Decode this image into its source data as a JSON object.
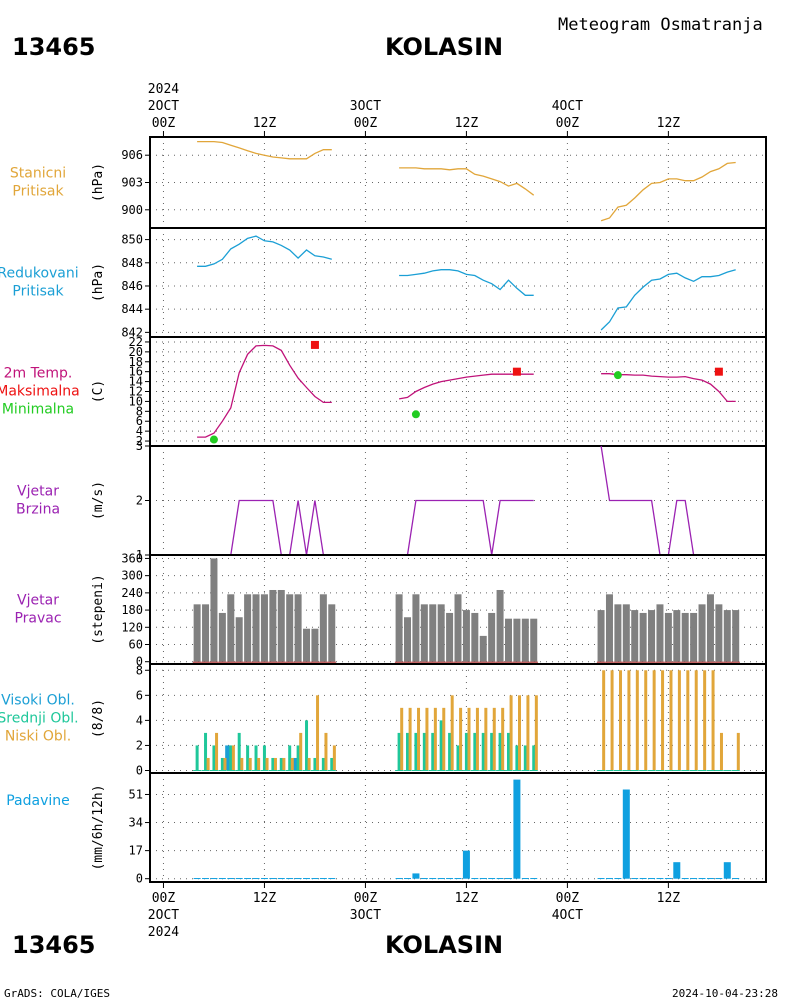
{
  "header": {
    "station_id": "13465",
    "station_name": "KOLASIN",
    "product_title": "Meteogram Osmatranja",
    "footer_left": "GrADS: COLA/IGES",
    "footer_right": "2024-10-04-23:28"
  },
  "time_axis": {
    "year_label": "2024",
    "top_day_labels": [
      "2OCT",
      "3OCT",
      "4OCT"
    ],
    "bottom_day_labels": [
      "2OCT",
      "3OCT",
      "4OCT"
    ],
    "hour_labels": [
      "00Z",
      "12Z",
      "00Z",
      "12Z",
      "00Z",
      "12Z"
    ],
    "hour_ticks_h": [
      0,
      12,
      24,
      36,
      48,
      60
    ],
    "range_h": [
      -1.6,
      71.6
    ]
  },
  "colors": {
    "pressure": "#e1a63a",
    "reduced_pressure": "#1b9fd5",
    "temperature": "#c0137a",
    "tmax": "#ee1111",
    "tmin": "#22cc22",
    "wind": "#9b22b2",
    "wind_dir": "#808080",
    "cloud_high": "#1b9fd5",
    "cloud_mid": "#1fc79a",
    "cloud_low": "#e1a63a",
    "precip": "#0fa0e0",
    "frame": "#000000",
    "grid": "#666666"
  },
  "chart_data": [
    {
      "type": "line",
      "panel": "station_pressure",
      "title": "Stanicni\nPritisak",
      "ylabel": "(hPa)",
      "ylim": [
        898,
        908
      ],
      "yticks": [
        900,
        903,
        906
      ],
      "color_key": "pressure",
      "segments": [
        {
          "x": [
            4,
            5,
            6,
            7,
            8,
            9,
            10,
            11,
            12,
            13,
            14,
            15,
            16,
            17,
            18,
            19,
            20
          ],
          "y": [
            907.5,
            907.5,
            907.5,
            907.4,
            907.1,
            906.8,
            906.5,
            906.2,
            906.0,
            905.8,
            905.7,
            905.6,
            905.6,
            905.6,
            906.2,
            906.6,
            906.6
          ]
        },
        {
          "x": [
            28,
            29,
            30,
            31,
            32,
            33,
            34,
            35,
            36,
            37,
            38,
            39,
            40,
            41,
            42,
            43,
            44
          ],
          "y": [
            904.6,
            904.6,
            904.6,
            904.5,
            904.5,
            904.5,
            904.4,
            904.5,
            904.5,
            903.9,
            903.7,
            903.4,
            903.1,
            902.6,
            902.9,
            902.3,
            901.6
          ]
        },
        {
          "x": [
            52,
            53,
            54,
            55,
            56,
            57,
            58,
            59,
            60,
            61,
            62,
            63,
            64,
            65,
            66,
            67,
            68
          ],
          "y": [
            898.8,
            899.1,
            900.3,
            900.5,
            901.3,
            902.2,
            902.9,
            903.0,
            903.4,
            903.4,
            903.2,
            903.2,
            903.6,
            904.2,
            904.5,
            905.1,
            905.2
          ]
        }
      ]
    },
    {
      "type": "line",
      "panel": "reduced_pressure",
      "title": "Redukovani\nPritisak",
      "ylabel": "(hPa)",
      "ylim": [
        841.6,
        851.0
      ],
      "yticks": [
        842,
        844,
        846,
        848,
        850
      ],
      "color_key": "reduced_pressure",
      "segments": [
        {
          "x": [
            4,
            5,
            6,
            7,
            8,
            9,
            10,
            11,
            12,
            13,
            14,
            15,
            16,
            17,
            18,
            19,
            20
          ],
          "y": [
            847.7,
            847.7,
            847.9,
            848.3,
            849.2,
            849.6,
            850.1,
            850.3,
            849.9,
            849.8,
            849.5,
            849.1,
            848.4,
            849.1,
            848.6,
            848.5,
            848.3
          ]
        },
        {
          "x": [
            28,
            29,
            30,
            31,
            32,
            33,
            34,
            35,
            36,
            37,
            38,
            39,
            40,
            41,
            42,
            43,
            44
          ],
          "y": [
            846.9,
            846.9,
            847.0,
            847.1,
            847.3,
            847.4,
            847.4,
            847.3,
            847.0,
            846.9,
            846.5,
            846.2,
            845.7,
            846.5,
            845.8,
            845.2,
            845.2
          ]
        },
        {
          "x": [
            52,
            53,
            54,
            55,
            56,
            57,
            58,
            59,
            60,
            61,
            62,
            63,
            64,
            65,
            66,
            67,
            68
          ],
          "y": [
            842.2,
            842.9,
            844.1,
            844.2,
            845.2,
            845.9,
            846.5,
            846.6,
            847.0,
            847.1,
            846.7,
            846.4,
            846.8,
            846.8,
            846.9,
            847.2,
            847.4
          ]
        }
      ]
    },
    {
      "type": "line",
      "panel": "temperature",
      "title": [
        "2m Temp.",
        "Maksimalna",
        "Minimalna"
      ],
      "ylabel": "(C)",
      "ylim": [
        1,
        23
      ],
      "yticks": [
        2,
        4,
        6,
        8,
        10,
        12,
        14,
        16,
        18,
        20,
        22
      ],
      "color_key": "temperature",
      "segments": [
        {
          "x": [
            4,
            5,
            6,
            7,
            8,
            9,
            10,
            11,
            12,
            13,
            14,
            15,
            16,
            17,
            18,
            19,
            20
          ],
          "y": [
            2.8,
            2.8,
            3.6,
            6.0,
            8.7,
            15.8,
            19.5,
            21.2,
            21.3,
            21.2,
            20.3,
            17.3,
            14.7,
            12.8,
            11.0,
            9.8,
            9.8
          ]
        },
        {
          "x": [
            28,
            29,
            30,
            31,
            32,
            33,
            34,
            35,
            36,
            37,
            38,
            39,
            40,
            41,
            42,
            43,
            44
          ],
          "y": [
            10.5,
            10.8,
            12.0,
            12.8,
            13.5,
            14.0,
            14.3,
            14.6,
            14.9,
            15.1,
            15.3,
            15.5,
            15.5,
            15.5,
            15.5,
            15.5,
            15.5
          ]
        },
        {
          "x": [
            52,
            53,
            54,
            55,
            56,
            57,
            58,
            59,
            60,
            61,
            62,
            63,
            64,
            65,
            66,
            67,
            68
          ],
          "y": [
            15.6,
            15.6,
            15.4,
            15.4,
            15.3,
            15.3,
            15.1,
            15.0,
            14.9,
            14.9,
            15.0,
            14.6,
            14.3,
            13.5,
            12.0,
            10.0,
            10.0
          ]
        }
      ],
      "tmax": [
        {
          "x": 18,
          "y": 21.4
        },
        {
          "x": 42,
          "y": 16.0
        },
        {
          "x": 66,
          "y": 16.0
        }
      ],
      "tmin": [
        {
          "x": 6,
          "y": 2.3
        },
        {
          "x": 30,
          "y": 7.4
        },
        {
          "x": 54,
          "y": 15.3
        }
      ]
    },
    {
      "type": "line",
      "panel": "wind_speed",
      "title": [
        "Vjetar",
        "Brzina"
      ],
      "ylabel": "(m/s)",
      "ylim": [
        1,
        3
      ],
      "yticks": [
        1,
        2,
        3
      ],
      "color_key": "wind",
      "segments": [
        {
          "x": [
            4,
            5,
            6,
            7,
            8,
            9,
            10,
            11,
            12,
            13,
            14,
            15,
            16,
            17,
            18,
            19,
            20
          ],
          "y": [
            1,
            1,
            1,
            1,
            1,
            2,
            2,
            2,
            2,
            2,
            1,
            1,
            2,
            1,
            2,
            1,
            1
          ]
        },
        {
          "x": [
            28,
            29,
            30,
            31,
            32,
            33,
            34,
            35,
            36,
            37,
            38,
            39,
            40,
            41,
            42,
            43,
            44
          ],
          "y": [
            1,
            1,
            2,
            2,
            2,
            2,
            2,
            2,
            2,
            2,
            2,
            1,
            2,
            2,
            2,
            2,
            2
          ]
        },
        {
          "x": [
            52,
            53,
            54,
            55,
            56,
            57,
            58,
            59,
            60,
            61,
            62,
            63,
            64,
            65,
            66,
            67,
            68
          ],
          "y": [
            3,
            2,
            2,
            2,
            2,
            2,
            2,
            1,
            1,
            2,
            2,
            1,
            1,
            1,
            1,
            1,
            1
          ]
        }
      ]
    },
    {
      "type": "bar",
      "panel": "wind_direction",
      "title": [
        "Vjetar",
        "Pravac"
      ],
      "ylabel": "(stepeni)",
      "ylim": [
        -8,
        372
      ],
      "yticks": [
        0,
        60,
        120,
        180,
        240,
        300,
        360
      ],
      "color_key": "wind_dir",
      "x": [
        4,
        5,
        6,
        7,
        8,
        9,
        10,
        11,
        12,
        13,
        14,
        15,
        16,
        17,
        18,
        19,
        20,
        28,
        29,
        30,
        31,
        32,
        33,
        34,
        35,
        36,
        37,
        38,
        39,
        40,
        41,
        42,
        43,
        44,
        52,
        53,
        54,
        55,
        56,
        57,
        58,
        59,
        60,
        61,
        62,
        63,
        64,
        65,
        66,
        67,
        68
      ],
      "values": [
        200,
        200,
        360,
        170,
        235,
        155,
        235,
        235,
        235,
        250,
        250,
        235,
        235,
        115,
        115,
        235,
        200,
        235,
        155,
        235,
        200,
        200,
        200,
        170,
        235,
        180,
        170,
        90,
        170,
        250,
        150,
        150,
        150,
        150,
        180,
        235,
        200,
        200,
        180,
        170,
        180,
        200,
        170,
        180,
        170,
        170,
        200,
        235,
        200,
        180,
        180
      ]
    },
    {
      "type": "bar",
      "panel": "clouds",
      "title": [
        "Visoki Obl.",
        "Srednji Obl.",
        "Niski Obl."
      ],
      "ylabel": "(8/8)",
      "ylim": [
        -0.2,
        8.5
      ],
      "yticks": [
        0,
        2,
        4,
        6,
        8
      ],
      "x": [
        4,
        5,
        6,
        7,
        8,
        9,
        10,
        11,
        12,
        13,
        14,
        15,
        16,
        17,
        18,
        19,
        20,
        28,
        29,
        30,
        31,
        32,
        33,
        34,
        35,
        36,
        37,
        38,
        39,
        40,
        41,
        42,
        43,
        44,
        52,
        53,
        54,
        55,
        56,
        57,
        58,
        59,
        60,
        61,
        62,
        63,
        64,
        65,
        66,
        67,
        68
      ],
      "series": [
        {
          "name": "Visoki Obl.",
          "color_key": "cloud_high",
          "values": [
            0,
            0,
            0,
            0,
            2,
            0,
            0,
            0,
            0,
            0,
            0,
            0,
            1,
            0,
            0,
            0,
            0,
            0,
            0,
            0,
            0,
            0,
            0,
            0,
            0,
            0,
            0,
            0,
            0,
            0,
            0,
            0,
            0,
            0,
            0,
            0,
            0,
            0,
            0,
            0,
            0,
            0,
            0,
            0,
            0,
            0,
            0,
            0,
            0,
            0,
            0
          ]
        },
        {
          "name": "Srednji Obl.",
          "color_key": "cloud_mid",
          "values": [
            2,
            3,
            2,
            1,
            2,
            3,
            2,
            2,
            2,
            1,
            1,
            2,
            2,
            4,
            1,
            1,
            1,
            3,
            3,
            3,
            3,
            3,
            4,
            3,
            2,
            3,
            3,
            3,
            3,
            3,
            3,
            2,
            2,
            2,
            0,
            0,
            0,
            0,
            0,
            0,
            0,
            0,
            0,
            0,
            0,
            0,
            0,
            0,
            0,
            0,
            0
          ]
        },
        {
          "name": "Niski Obl.",
          "color_key": "cloud_low",
          "values": [
            0,
            1,
            3,
            1,
            2,
            1,
            1,
            1,
            1,
            1,
            1,
            1,
            3,
            1,
            6,
            3,
            2,
            5,
            5,
            5,
            5,
            5,
            5,
            6,
            5,
            5,
            5,
            5,
            5,
            5,
            6,
            6,
            6,
            6,
            8,
            8,
            8,
            8,
            8,
            8,
            8,
            8,
            8,
            8,
            8,
            8,
            8,
            8,
            3,
            0,
            3
          ]
        }
      ]
    },
    {
      "type": "bar",
      "panel": "precipitation",
      "title": "Padavine",
      "ylabel": "(mm/6h/12h)",
      "ylim": [
        -2,
        64
      ],
      "yticks": [
        0,
        17,
        34,
        51
      ],
      "color_key": "precip",
      "x": [
        4,
        5,
        6,
        7,
        8,
        9,
        10,
        11,
        12,
        13,
        14,
        15,
        16,
        17,
        18,
        19,
        20,
        28,
        29,
        30,
        31,
        32,
        33,
        34,
        35,
        36,
        37,
        38,
        39,
        40,
        41,
        42,
        43,
        44,
        52,
        53,
        54,
        55,
        56,
        57,
        58,
        59,
        60,
        61,
        62,
        63,
        64,
        65,
        66,
        67,
        68
      ],
      "values": [
        0.4,
        0.4,
        0.4,
        0.4,
        0.4,
        0.4,
        0.4,
        0.4,
        0.4,
        0.4,
        0.4,
        0.4,
        0.4,
        0.4,
        0.4,
        0.4,
        0.4,
        0.4,
        0.4,
        3.2,
        0.4,
        0.4,
        0.4,
        0.4,
        0.4,
        17,
        0.4,
        0.4,
        0.4,
        0.4,
        0.4,
        60,
        0.4,
        0.4,
        0.4,
        0.4,
        0.4,
        54,
        0.4,
        0.4,
        0.4,
        0.4,
        0.4,
        10,
        0.4,
        0.4,
        0.4,
        0.4,
        0.4,
        10,
        0.4
      ]
    }
  ]
}
